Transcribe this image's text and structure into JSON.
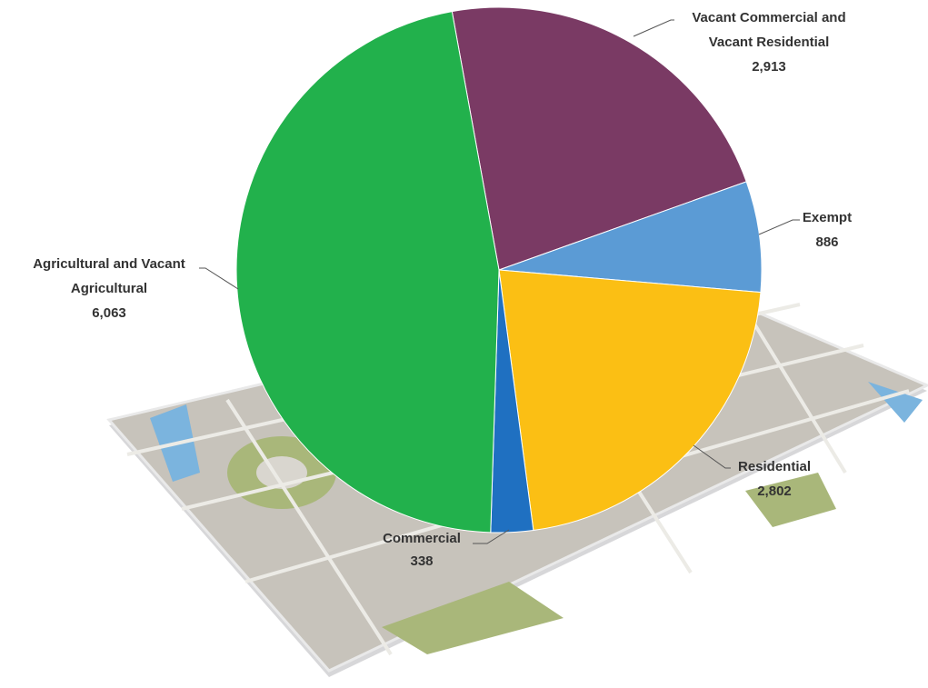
{
  "chart_data": {
    "type": "pie",
    "categories": [
      "Vacant Commercial and Vacant Residential",
      "Exempt",
      "Residential",
      "Commercial",
      "Agricultural and Vacant Agricultural"
    ],
    "values": [
      2913,
      886,
      2802,
      338,
      6063
    ],
    "value_labels": [
      "2,913",
      "886",
      "2,802",
      "338",
      "6,063"
    ],
    "colors": [
      "#7a3a64",
      "#5b9bd5",
      "#fbbf14",
      "#1f70c1",
      "#22b14c"
    ]
  }
}
